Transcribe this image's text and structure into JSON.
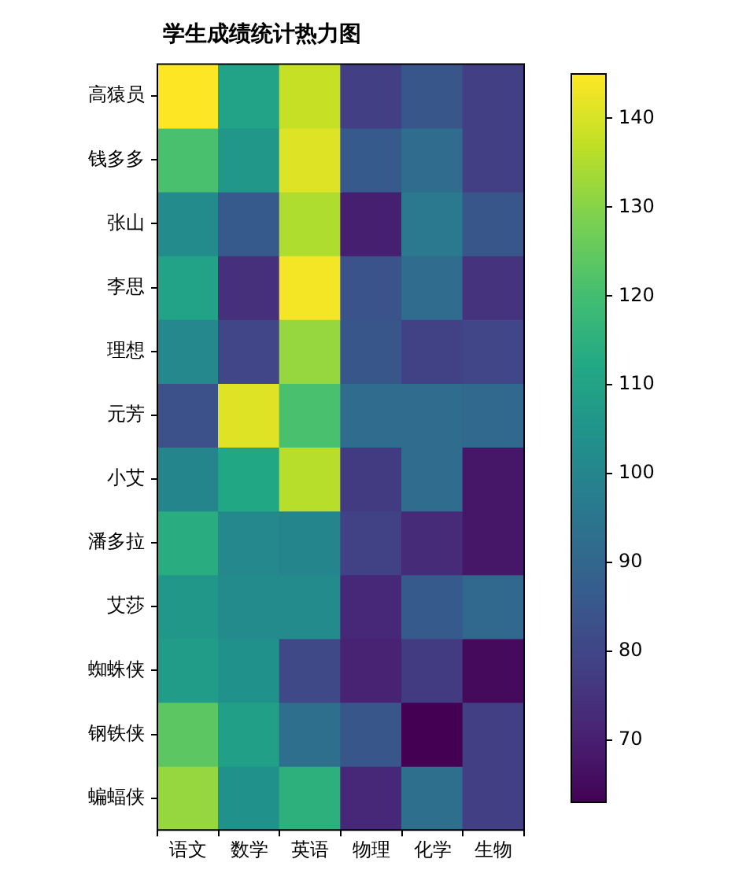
{
  "chart_data": {
    "type": "heatmap",
    "title": "学生成绩统计热力图",
    "categories": [
      "语文",
      "数学",
      "英语",
      "物理",
      "化学",
      "生物"
    ],
    "y_categories": [
      "高猿员",
      "钱多多",
      "张山",
      "李思",
      "理想",
      "元芳",
      "小艾",
      "潘多拉",
      "艾莎",
      "蜘蛛侠",
      "钢铁侠",
      "蝙蝠侠"
    ],
    "cells": [
      [
        145,
        110,
        138,
        78,
        85,
        78
      ],
      [
        121,
        106,
        141,
        86,
        92,
        78
      ],
      [
        102,
        86,
        135,
        70,
        96,
        85
      ],
      [
        110,
        74,
        144,
        84,
        92,
        75
      ],
      [
        101,
        80,
        132,
        85,
        79,
        80
      ],
      [
        83,
        141,
        121,
        92,
        92,
        91
      ],
      [
        100,
        112,
        136,
        77,
        92,
        68
      ],
      [
        114,
        101,
        100,
        79,
        73,
        68
      ],
      [
        106,
        102,
        102,
        72,
        86,
        91
      ],
      [
        108,
        104,
        81,
        71,
        77,
        65
      ],
      [
        124,
        109,
        93,
        85,
        63,
        78
      ],
      [
        132,
        104,
        115,
        72,
        93,
        78
      ]
    ],
    "clim": [
      63,
      145
    ],
    "cticks": [
      70,
      80,
      90,
      100,
      110,
      120,
      130,
      140
    ]
  }
}
